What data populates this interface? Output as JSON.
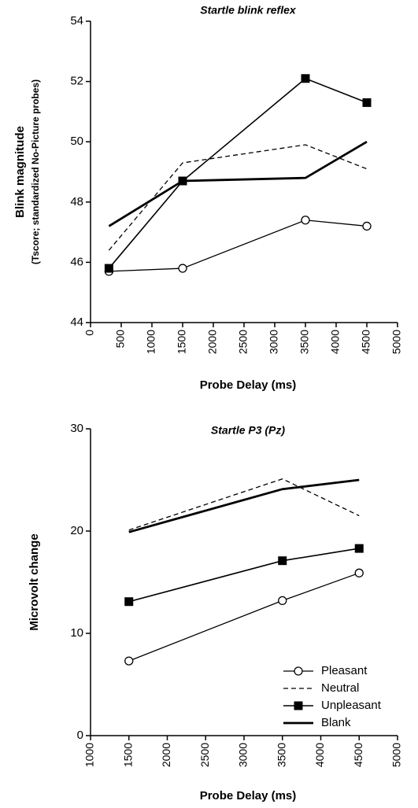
{
  "chart_data": [
    {
      "type": "line",
      "title": "Startle blink reflex",
      "ylabel": "Blink magnitude",
      "ylabel_sub": "(Tscore; standardized No-Picture probes)",
      "xlabel": "Probe Delay (ms)",
      "x": [
        300,
        1500,
        3500,
        4500
      ],
      "xlim": [
        0,
        5000
      ],
      "xticks": [
        0,
        500,
        1000,
        1500,
        2000,
        2500,
        3000,
        3500,
        4000,
        4500,
        5000
      ],
      "ylim": [
        44,
        54
      ],
      "yticks": [
        44,
        46,
        48,
        50,
        52,
        54
      ],
      "series": [
        {
          "name": "Pleasant",
          "color": "#000000",
          "marker": "circle",
          "dash": false,
          "width": 1.3,
          "values": [
            45.7,
            45.8,
            47.4,
            47.2
          ]
        },
        {
          "name": "Neutral",
          "color": "#000000",
          "marker": "none",
          "dash": true,
          "width": 1.3,
          "values": [
            46.4,
            49.3,
            49.9,
            49.1
          ]
        },
        {
          "name": "Unpleasant",
          "color": "#000000",
          "marker": "square",
          "dash": false,
          "width": 1.6,
          "values": [
            45.8,
            48.7,
            52.1,
            51.3
          ]
        },
        {
          "name": "Blank",
          "color": "#000000",
          "marker": "none",
          "dash": false,
          "width": 2.8,
          "values": [
            47.2,
            48.7,
            48.8,
            50.0
          ]
        }
      ],
      "legend": false
    },
    {
      "type": "line",
      "title": "Startle P3 (Pz)",
      "ylabel": "Microvolt change",
      "xlabel": "Probe Delay (ms)",
      "x": [
        1500,
        3500,
        4500
      ],
      "xlim": [
        1000,
        5000
      ],
      "xticks": [
        1000,
        1500,
        2000,
        2500,
        3000,
        3500,
        4000,
        4500,
        5000
      ],
      "ylim": [
        0,
        30
      ],
      "yticks": [
        0,
        10,
        20,
        30
      ],
      "series": [
        {
          "name": "Pleasant",
          "color": "#000000",
          "marker": "circle",
          "dash": false,
          "width": 1.3,
          "values": [
            7.3,
            13.2,
            15.9
          ]
        },
        {
          "name": "Neutral",
          "color": "#000000",
          "marker": "none",
          "dash": true,
          "width": 1.3,
          "values": [
            20.1,
            25.1,
            21.5
          ]
        },
        {
          "name": "Unpleasant",
          "color": "#000000",
          "marker": "square",
          "dash": false,
          "width": 1.6,
          "values": [
            13.1,
            17.1,
            18.3
          ]
        },
        {
          "name": "Blank",
          "color": "#000000",
          "marker": "none",
          "dash": false,
          "width": 2.8,
          "values": [
            19.9,
            24.1,
            25.0
          ]
        }
      ],
      "legend": "lower right"
    }
  ]
}
